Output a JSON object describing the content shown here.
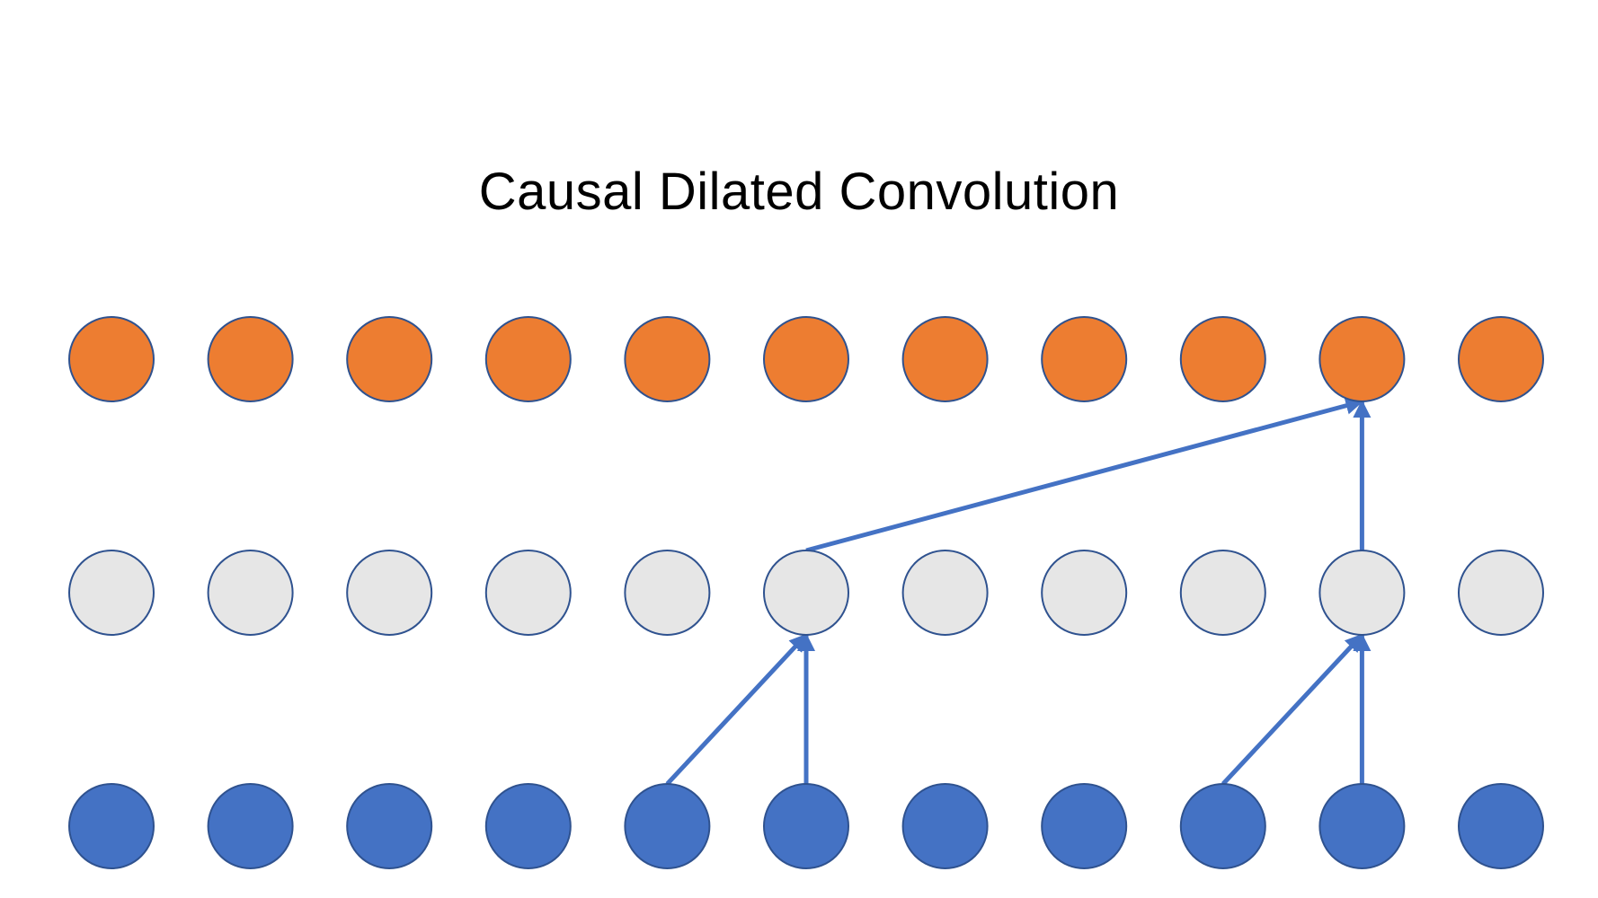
{
  "title": "Causal Dilated Convolution",
  "colors": {
    "output_fill": "#ED7D31",
    "hidden_fill": "#E6E6E6",
    "input_fill": "#4472C4",
    "node_stroke": "#2F528F",
    "arrow": "#4472C4",
    "background": "#FFFFFF"
  },
  "layers": [
    {
      "name": "output",
      "node_count": 11
    },
    {
      "name": "hidden",
      "node_count": 11
    },
    {
      "name": "input",
      "node_count": 11
    }
  ],
  "connections": [
    {
      "from_layer": "input",
      "from_index": 4,
      "to_layer": "hidden",
      "to_index": 5
    },
    {
      "from_layer": "input",
      "from_index": 5,
      "to_layer": "hidden",
      "to_index": 5
    },
    {
      "from_layer": "input",
      "from_index": 8,
      "to_layer": "hidden",
      "to_index": 9
    },
    {
      "from_layer": "input",
      "from_index": 9,
      "to_layer": "hidden",
      "to_index": 9
    },
    {
      "from_layer": "hidden",
      "from_index": 5,
      "to_layer": "output",
      "to_index": 9
    },
    {
      "from_layer": "hidden",
      "from_index": 9,
      "to_layer": "output",
      "to_index": 9
    }
  ]
}
